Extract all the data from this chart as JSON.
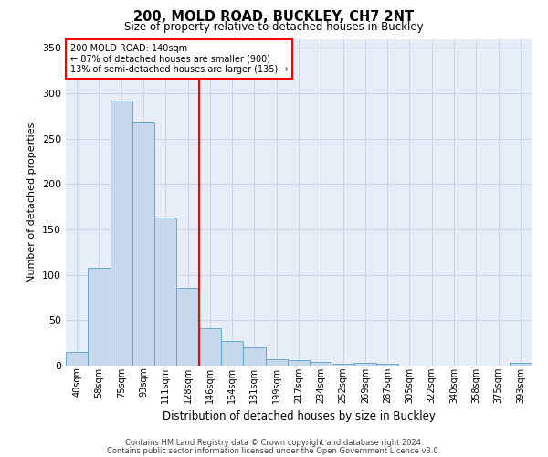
{
  "title": "200, MOLD ROAD, BUCKLEY, CH7 2NT",
  "subtitle": "Size of property relative to detached houses in Buckley",
  "xlabel": "Distribution of detached houses by size in Buckley",
  "ylabel": "Number of detached properties",
  "footer1": "Contains HM Land Registry data © Crown copyright and database right 2024.",
  "footer2": "Contains public sector information licensed under the Open Government Licence v3.0.",
  "bin_labels": [
    "40sqm",
    "58sqm",
    "75sqm",
    "93sqm",
    "111sqm",
    "128sqm",
    "146sqm",
    "164sqm",
    "181sqm",
    "199sqm",
    "217sqm",
    "234sqm",
    "252sqm",
    "269sqm",
    "287sqm",
    "305sqm",
    "322sqm",
    "340sqm",
    "358sqm",
    "375sqm",
    "393sqm"
  ],
  "bar_values": [
    15,
    108,
    292,
    268,
    163,
    86,
    41,
    27,
    20,
    7,
    6,
    4,
    2,
    3,
    2,
    0,
    0,
    0,
    0,
    0,
    3
  ],
  "bar_color": "#c5d8ec",
  "bar_edge_color": "#5a9ec8",
  "grid_color": "#cdd6e8",
  "background_color": "#e8eef8",
  "annotation_text": "200 MOLD ROAD: 140sqm\n← 87% of detached houses are smaller (900)\n13% of semi-detached houses are larger (135) →",
  "annotation_box_color": "white",
  "annotation_box_edge": "red",
  "ylim": [
    0,
    360
  ],
  "yticks": [
    0,
    50,
    100,
    150,
    200,
    250,
    300,
    350
  ],
  "red_line_bin_index": 6
}
